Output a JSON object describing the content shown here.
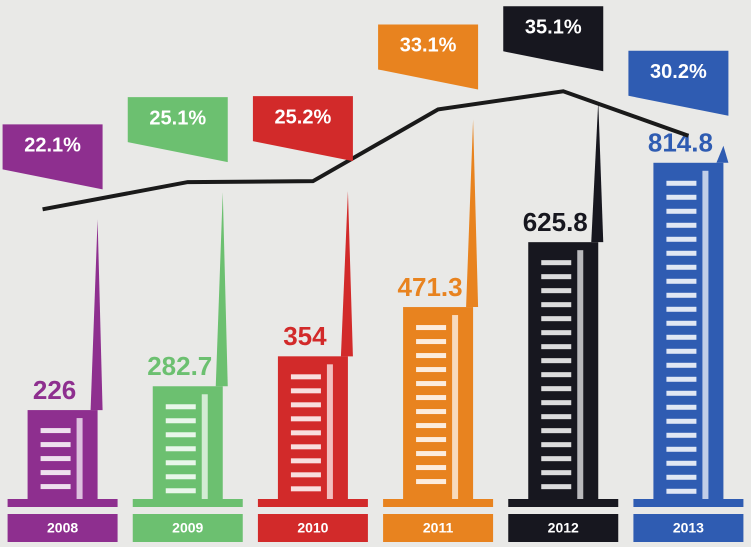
{
  "chart_data": {
    "type": "bar",
    "categories": [
      "2008",
      "2009",
      "2010",
      "2011",
      "2012",
      "2013"
    ],
    "colors": [
      "#8e2f8f",
      "#6cc070",
      "#d22a2a",
      "#e8831f",
      "#17171f",
      "#2f5cb2"
    ],
    "series": [
      {
        "type": "bar",
        "values": [
          226,
          282.7,
          354,
          471.3,
          625.8,
          814.8
        ]
      },
      {
        "type": "line",
        "color": "#1a1a1a",
        "values": [
          22.1,
          25.1,
          25.2,
          33.1,
          35.1,
          30.2
        ],
        "value_labels": [
          "22.1%",
          "25.1%",
          "25.2%",
          "33.1%",
          "35.1%",
          "30.2%"
        ]
      }
    ]
  }
}
